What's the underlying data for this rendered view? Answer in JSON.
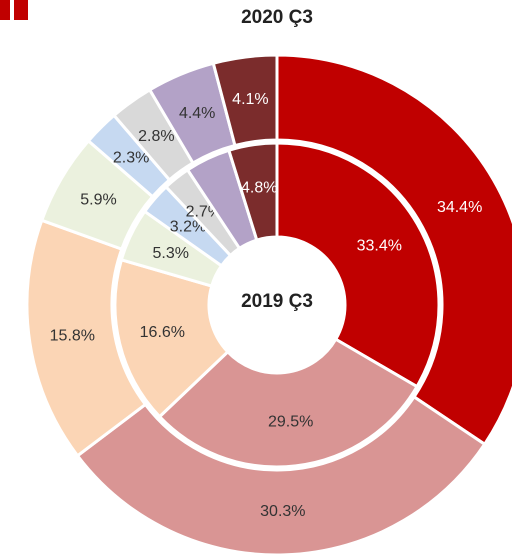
{
  "chart_data": {
    "type": "nested-donut",
    "title": "2020 Ç3",
    "center_label": "2019 Ç3",
    "colors": [
      "#c00000",
      "#d99594",
      "#fbd5b5",
      "#ebf1de",
      "#c6d9f1",
      "#d9d9d9",
      "#b3a2c7",
      "#7b2c2c"
    ],
    "series": [
      {
        "name": "2020 Ç3",
        "ring": "outer",
        "values": [
          34.4,
          30.3,
          15.8,
          5.9,
          2.3,
          2.8,
          4.4,
          4.1
        ],
        "value_labels": [
          "34.4%",
          "30.3%",
          "15.8%",
          "5.9%",
          "2.3%",
          "2.8%",
          "4.4%",
          "4.1%"
        ]
      },
      {
        "name": "2019 Ç3",
        "ring": "inner",
        "values": [
          33.4,
          29.5,
          16.6,
          5.3,
          3.2,
          2.7,
          4.5,
          4.8
        ],
        "value_labels": [
          "33.4%",
          "29.5%",
          "16.6%",
          "5.3%",
          "3.2%",
          "2.7%",
          null,
          "4.8%"
        ]
      }
    ]
  }
}
